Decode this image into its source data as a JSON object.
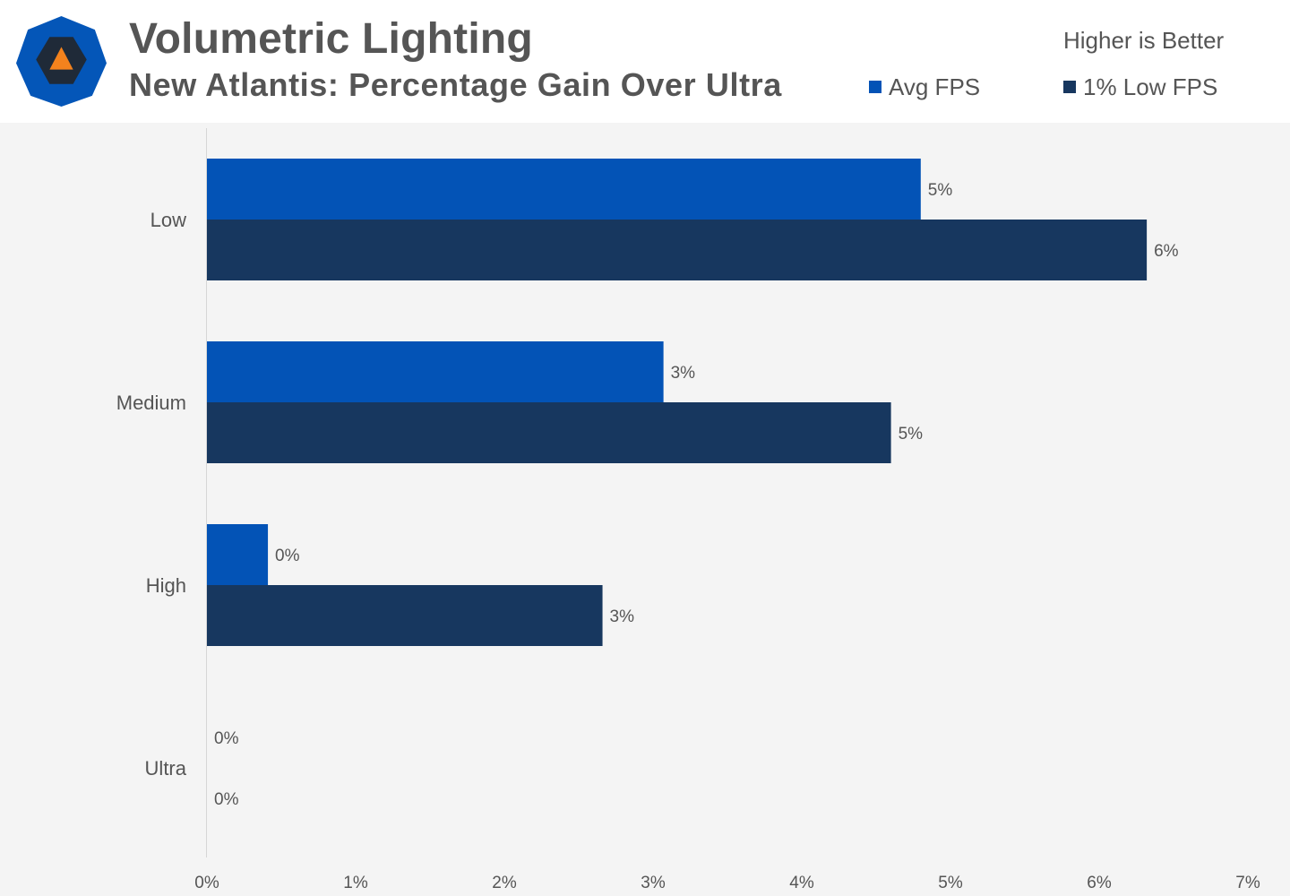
{
  "header": {
    "title": "Volumetric Lighting",
    "subtitle": "New Atlantis: Percentage Gain Over Ultra",
    "note": "Higher is Better",
    "logo_icon": "techspot-logo-icon"
  },
  "colors": {
    "avg": "#0353b6",
    "low": "#17375f",
    "logo_outer": "#0456b8",
    "logo_inner": "#1f2a38",
    "logo_triangle": "#f3821d"
  },
  "chart_data": {
    "type": "bar",
    "orientation": "horizontal",
    "categories": [
      "Low",
      "Medium",
      "High",
      "Ultra"
    ],
    "series": [
      {
        "name": "Avg FPS",
        "values": [
          4.8,
          3.07,
          0.41,
          0
        ],
        "labels": [
          "5%",
          "3%",
          "0%",
          "0%"
        ]
      },
      {
        "name": "1% Low FPS",
        "values": [
          6.32,
          4.6,
          2.66,
          0
        ],
        "labels": [
          "6%",
          "5%",
          "3%",
          "0%"
        ]
      }
    ],
    "xlim": [
      0,
      7
    ],
    "xticks": [
      0,
      1,
      2,
      3,
      4,
      5,
      6,
      7
    ],
    "xtick_labels": [
      "0%",
      "1%",
      "2%",
      "3%",
      "4%",
      "5%",
      "6%",
      "7%"
    ],
    "grid": false,
    "legend_position": "top-right"
  }
}
